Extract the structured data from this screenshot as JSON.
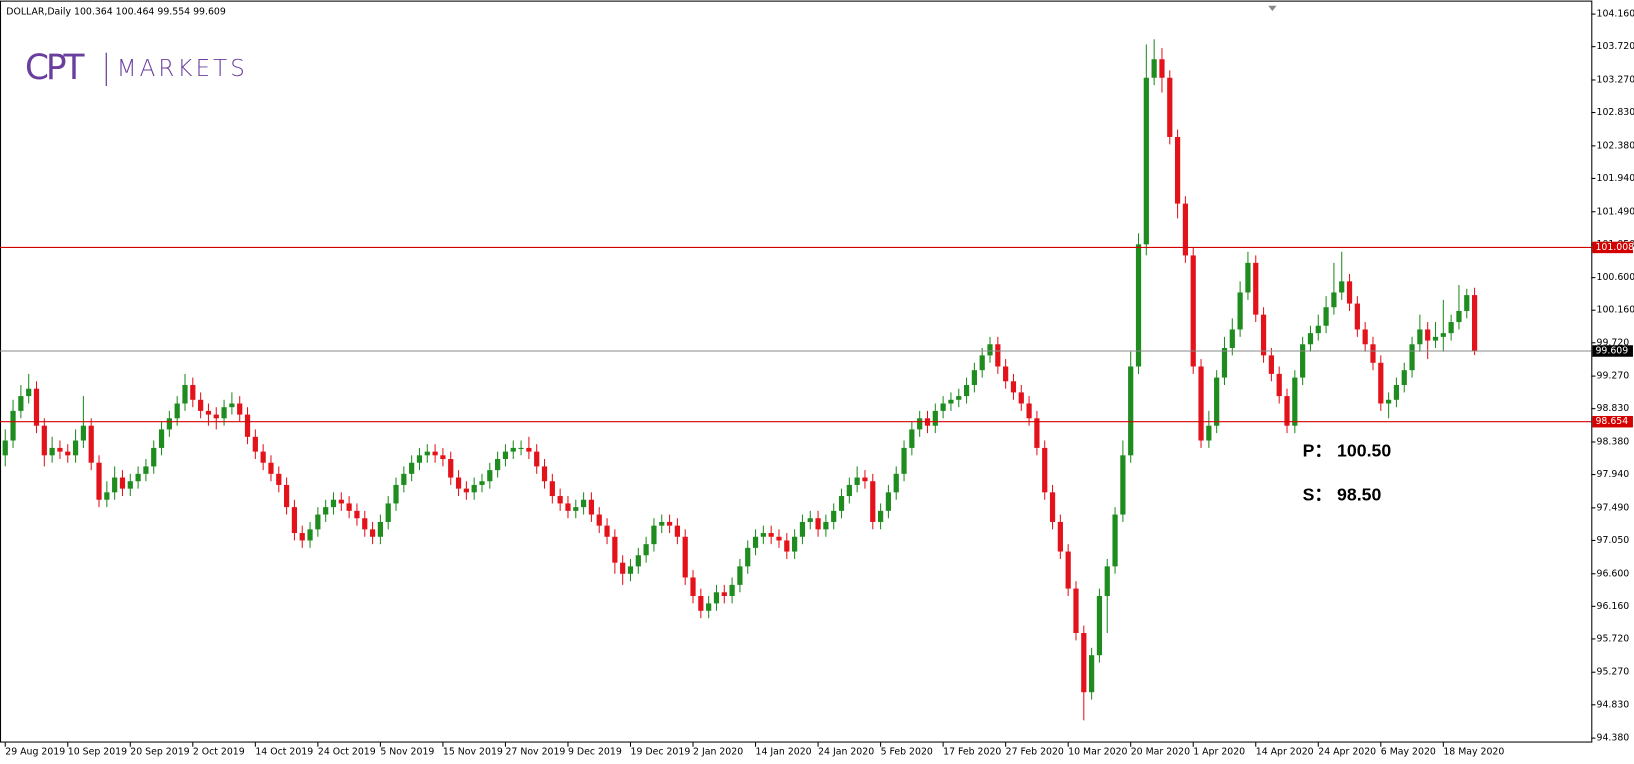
{
  "chart_data": {
    "type": "candlestick",
    "header": "DOLLAR,Daily  100.364 100.464 99.554 99.609",
    "logo": {
      "mark": "CPT",
      "name": "MARKETS"
    },
    "annotations": [
      "P：  100.50",
      "S：  98.50"
    ],
    "up_color": "#1e8c1e",
    "down_color": "#e3121b",
    "ylim": [
      94.32,
      104.3
    ],
    "yticks": [
      {
        "value": 104.16,
        "label": "104.160"
      },
      {
        "value": 103.72,
        "label": "103.720"
      },
      {
        "value": 103.27,
        "label": "103.270"
      },
      {
        "value": 102.83,
        "label": "102.830"
      },
      {
        "value": 102.38,
        "label": "102.380"
      },
      {
        "value": 101.94,
        "label": "101.940"
      },
      {
        "value": 101.49,
        "label": "101.490"
      },
      {
        "value": 101.05,
        "label": "101.050"
      },
      {
        "value": 100.6,
        "label": "100.600"
      },
      {
        "value": 100.16,
        "label": "100.160"
      },
      {
        "value": 99.72,
        "label": "99.720"
      },
      {
        "value": 99.27,
        "label": "99.270"
      },
      {
        "value": 98.83,
        "label": "98.830"
      },
      {
        "value": 98.38,
        "label": "98.380"
      },
      {
        "value": 97.94,
        "label": "97.940"
      },
      {
        "value": 97.49,
        "label": "97.490"
      },
      {
        "value": 97.05,
        "label": "97.050"
      },
      {
        "value": 96.6,
        "label": "96.600"
      },
      {
        "value": 96.16,
        "label": "96.160"
      },
      {
        "value": 95.72,
        "label": "95.720"
      },
      {
        "value": 95.27,
        "label": "95.270"
      },
      {
        "value": 94.83,
        "label": "94.830"
      },
      {
        "value": 94.38,
        "label": "94.380"
      }
    ],
    "xlim": [
      -0.67,
      202.93
    ],
    "xticks": [
      {
        "value": 0,
        "label": "29 Aug 2019"
      },
      {
        "value": 8,
        "label": "10 Sep 2019"
      },
      {
        "value": 16,
        "label": "20 Sep 2019"
      },
      {
        "value": 24,
        "label": "2 Oct 2019"
      },
      {
        "value": 32,
        "label": "14 Oct 2019"
      },
      {
        "value": 40,
        "label": "24 Oct 2019"
      },
      {
        "value": 48,
        "label": "5 Nov 2019"
      },
      {
        "value": 56,
        "label": "15 Nov 2019"
      },
      {
        "value": 64,
        "label": "27 Nov 2019"
      },
      {
        "value": 72,
        "label": "9 Dec 2019"
      },
      {
        "value": 80,
        "label": "19 Dec 2019"
      },
      {
        "value": 88,
        "label": "2 Jan 2020"
      },
      {
        "value": 96,
        "label": "14 Jan 2020"
      },
      {
        "value": 104,
        "label": "24 Jan 2020"
      },
      {
        "value": 112,
        "label": "5 Feb 2020"
      },
      {
        "value": 120,
        "label": "17 Feb 2020"
      },
      {
        "value": 128,
        "label": "27 Feb 2020"
      },
      {
        "value": 136,
        "label": "10 Mar 2020"
      },
      {
        "value": 144,
        "label": "20 Mar 2020"
      },
      {
        "value": 152,
        "label": "1 Apr 2020"
      },
      {
        "value": 160,
        "label": "14 Apr 2020"
      },
      {
        "value": 168,
        "label": "24 Apr 2020"
      },
      {
        "value": 176,
        "label": "6 May 2020"
      },
      {
        "value": 184,
        "label": "18 May 2020"
      }
    ],
    "levels": [
      101.008,
      99.609,
      98.654
    ],
    "level_colors": [
      "#d40000",
      "#888888",
      "#d40000"
    ],
    "level_label_colors": [
      "#d40000",
      "#000000",
      "#d40000"
    ],
    "ohlc": [
      [
        98.2,
        98.55,
        98.05,
        98.4
      ],
      [
        98.4,
        98.95,
        98.3,
        98.8
      ],
      [
        98.8,
        99.15,
        98.7,
        99.0
      ],
      [
        99.0,
        99.3,
        98.9,
        99.1
      ],
      [
        99.1,
        99.2,
        98.5,
        98.6
      ],
      [
        98.6,
        98.7,
        98.05,
        98.2
      ],
      [
        98.2,
        98.45,
        98.1,
        98.3
      ],
      [
        98.3,
        98.4,
        98.15,
        98.25
      ],
      [
        98.25,
        98.35,
        98.1,
        98.2
      ],
      [
        98.2,
        98.55,
        98.1,
        98.4
      ],
      [
        98.4,
        99.0,
        98.3,
        98.6
      ],
      [
        98.6,
        98.7,
        98.0,
        98.1
      ],
      [
        98.1,
        98.2,
        97.5,
        97.6
      ],
      [
        97.6,
        97.85,
        97.5,
        97.7
      ],
      [
        97.7,
        98.05,
        97.6,
        97.9
      ],
      [
        97.9,
        98.0,
        97.65,
        97.75
      ],
      [
        97.75,
        97.95,
        97.65,
        97.85
      ],
      [
        97.85,
        98.05,
        97.75,
        97.95
      ],
      [
        97.95,
        98.15,
        97.85,
        98.05
      ],
      [
        98.05,
        98.4,
        97.95,
        98.3
      ],
      [
        98.3,
        98.65,
        98.2,
        98.55
      ],
      [
        98.55,
        98.8,
        98.45,
        98.7
      ],
      [
        98.7,
        99.0,
        98.6,
        98.9
      ],
      [
        98.9,
        99.3,
        98.8,
        99.15
      ],
      [
        99.15,
        99.25,
        98.85,
        98.95
      ],
      [
        98.95,
        99.05,
        98.7,
        98.8
      ],
      [
        98.8,
        98.9,
        98.6,
        98.75
      ],
      [
        98.75,
        98.85,
        98.55,
        98.7
      ],
      [
        98.7,
        98.95,
        98.6,
        98.85
      ],
      [
        98.85,
        99.05,
        98.75,
        98.9
      ],
      [
        98.9,
        99.0,
        98.65,
        98.75
      ],
      [
        98.75,
        98.85,
        98.35,
        98.45
      ],
      [
        98.45,
        98.55,
        98.15,
        98.25
      ],
      [
        98.25,
        98.35,
        98.0,
        98.1
      ],
      [
        98.1,
        98.2,
        97.85,
        97.95
      ],
      [
        97.95,
        98.05,
        97.7,
        97.8
      ],
      [
        97.8,
        97.9,
        97.4,
        97.5
      ],
      [
        97.5,
        97.6,
        97.05,
        97.15
      ],
      [
        97.15,
        97.25,
        96.95,
        97.05
      ],
      [
        97.05,
        97.3,
        96.95,
        97.2
      ],
      [
        97.2,
        97.5,
        97.1,
        97.4
      ],
      [
        97.4,
        97.6,
        97.3,
        97.5
      ],
      [
        97.5,
        97.7,
        97.4,
        97.6
      ],
      [
        97.6,
        97.7,
        97.45,
        97.55
      ],
      [
        97.55,
        97.65,
        97.35,
        97.45
      ],
      [
        97.45,
        97.55,
        97.25,
        97.35
      ],
      [
        97.35,
        97.45,
        97.1,
        97.2
      ],
      [
        97.2,
        97.3,
        97.0,
        97.1
      ],
      [
        97.1,
        97.4,
        97.0,
        97.3
      ],
      [
        97.3,
        97.65,
        97.2,
        97.55
      ],
      [
        97.55,
        97.9,
        97.45,
        97.8
      ],
      [
        97.8,
        98.05,
        97.7,
        97.95
      ],
      [
        97.95,
        98.2,
        97.85,
        98.1
      ],
      [
        98.1,
        98.3,
        98.0,
        98.2
      ],
      [
        98.2,
        98.35,
        98.1,
        98.25
      ],
      [
        98.25,
        98.35,
        98.1,
        98.2
      ],
      [
        98.2,
        98.3,
        98.05,
        98.15
      ],
      [
        98.15,
        98.25,
        97.8,
        97.9
      ],
      [
        97.9,
        98.0,
        97.65,
        97.75
      ],
      [
        97.75,
        97.85,
        97.6,
        97.7
      ],
      [
        97.7,
        97.9,
        97.6,
        97.8
      ],
      [
        97.8,
        97.95,
        97.7,
        97.85
      ],
      [
        97.85,
        98.1,
        97.75,
        98.0
      ],
      [
        98.0,
        98.25,
        97.9,
        98.15
      ],
      [
        98.15,
        98.35,
        98.05,
        98.25
      ],
      [
        98.25,
        98.4,
        98.15,
        98.3
      ],
      [
        98.3,
        98.4,
        98.2,
        98.3
      ],
      [
        98.3,
        98.45,
        98.15,
        98.25
      ],
      [
        98.25,
        98.35,
        97.95,
        98.05
      ],
      [
        98.05,
        98.15,
        97.75,
        97.85
      ],
      [
        97.85,
        97.95,
        97.55,
        97.65
      ],
      [
        97.65,
        97.75,
        97.45,
        97.55
      ],
      [
        97.55,
        97.65,
        97.35,
        97.45
      ],
      [
        97.45,
        97.6,
        97.35,
        97.5
      ],
      [
        97.5,
        97.7,
        97.4,
        97.6
      ],
      [
        97.6,
        97.7,
        97.3,
        97.4
      ],
      [
        97.4,
        97.5,
        97.15,
        97.25
      ],
      [
        97.25,
        97.35,
        97.0,
        97.1
      ],
      [
        97.1,
        97.2,
        96.6,
        96.75
      ],
      [
        96.75,
        96.85,
        96.45,
        96.6
      ],
      [
        96.6,
        96.8,
        96.5,
        96.7
      ],
      [
        96.7,
        96.95,
        96.6,
        96.85
      ],
      [
        96.85,
        97.1,
        96.75,
        97.0
      ],
      [
        97.0,
        97.35,
        96.9,
        97.25
      ],
      [
        97.25,
        97.4,
        97.15,
        97.3
      ],
      [
        97.3,
        97.4,
        97.15,
        97.25
      ],
      [
        97.25,
        97.35,
        97.0,
        97.1
      ],
      [
        97.1,
        97.2,
        96.45,
        96.55
      ],
      [
        96.55,
        96.65,
        96.2,
        96.3
      ],
      [
        96.3,
        96.4,
        96.0,
        96.1
      ],
      [
        96.1,
        96.3,
        96.0,
        96.2
      ],
      [
        96.2,
        96.45,
        96.1,
        96.35
      ],
      [
        96.35,
        96.45,
        96.2,
        96.3
      ],
      [
        96.3,
        96.55,
        96.2,
        96.45
      ],
      [
        96.45,
        96.8,
        96.35,
        96.7
      ],
      [
        96.7,
        97.05,
        96.6,
        96.95
      ],
      [
        96.95,
        97.2,
        96.85,
        97.1
      ],
      [
        97.1,
        97.25,
        97.0,
        97.15
      ],
      [
        97.15,
        97.25,
        97.0,
        97.1
      ],
      [
        97.1,
        97.2,
        96.95,
        97.05
      ],
      [
        97.05,
        97.15,
        96.8,
        96.9
      ],
      [
        96.9,
        97.2,
        96.8,
        97.1
      ],
      [
        97.1,
        97.4,
        97.0,
        97.3
      ],
      [
        97.3,
        97.45,
        97.2,
        97.35
      ],
      [
        97.35,
        97.45,
        97.1,
        97.2
      ],
      [
        97.2,
        97.4,
        97.1,
        97.3
      ],
      [
        97.3,
        97.55,
        97.2,
        97.45
      ],
      [
        97.45,
        97.75,
        97.35,
        97.65
      ],
      [
        97.65,
        97.9,
        97.55,
        97.8
      ],
      [
        97.8,
        98.05,
        97.7,
        97.9
      ],
      [
        97.9,
        98.0,
        97.75,
        97.85
      ],
      [
        97.85,
        97.95,
        97.2,
        97.3
      ],
      [
        97.3,
        97.55,
        97.2,
        97.45
      ],
      [
        97.45,
        97.8,
        97.35,
        97.7
      ],
      [
        97.7,
        98.05,
        97.6,
        97.95
      ],
      [
        97.95,
        98.4,
        97.85,
        98.3
      ],
      [
        98.3,
        98.65,
        98.2,
        98.55
      ],
      [
        98.55,
        98.8,
        98.45,
        98.7
      ],
      [
        98.7,
        98.8,
        98.5,
        98.6
      ],
      [
        98.6,
        98.9,
        98.5,
        98.8
      ],
      [
        98.8,
        99.0,
        98.7,
        98.9
      ],
      [
        98.9,
        99.05,
        98.8,
        98.95
      ],
      [
        98.95,
        99.1,
        98.85,
        99.0
      ],
      [
        99.0,
        99.25,
        98.9,
        99.15
      ],
      [
        99.15,
        99.45,
        99.05,
        99.35
      ],
      [
        99.35,
        99.65,
        99.25,
        99.55
      ],
      [
        99.55,
        99.8,
        99.45,
        99.7
      ],
      [
        99.7,
        99.8,
        99.3,
        99.4
      ],
      [
        99.4,
        99.5,
        99.1,
        99.2
      ],
      [
        99.2,
        99.3,
        98.95,
        99.05
      ],
      [
        99.05,
        99.15,
        98.8,
        98.9
      ],
      [
        98.9,
        99.0,
        98.6,
        98.7
      ],
      [
        98.7,
        98.8,
        98.2,
        98.3
      ],
      [
        98.3,
        98.4,
        97.6,
        97.7
      ],
      [
        97.7,
        97.8,
        97.2,
        97.3
      ],
      [
        97.3,
        97.4,
        96.8,
        96.9
      ],
      [
        96.9,
        97.0,
        96.3,
        96.4
      ],
      [
        96.4,
        96.5,
        95.7,
        95.8
      ],
      [
        95.8,
        95.9,
        94.62,
        95.0
      ],
      [
        95.0,
        95.6,
        94.9,
        95.5
      ],
      [
        95.5,
        96.4,
        95.4,
        96.3
      ],
      [
        96.3,
        96.8,
        95.8,
        96.7
      ],
      [
        96.7,
        97.5,
        96.6,
        97.4
      ],
      [
        97.4,
        98.4,
        97.3,
        98.2
      ],
      [
        98.2,
        99.6,
        98.1,
        99.4
      ],
      [
        99.4,
        101.2,
        99.3,
        101.05
      ],
      [
        101.05,
        103.75,
        100.9,
        103.3
      ],
      [
        103.3,
        103.82,
        103.2,
        103.55
      ],
      [
        103.55,
        103.7,
        103.1,
        103.3
      ],
      [
        103.3,
        103.4,
        102.4,
        102.5
      ],
      [
        102.5,
        102.6,
        101.4,
        101.6
      ],
      [
        101.6,
        101.7,
        100.8,
        100.9
      ],
      [
        100.9,
        101.0,
        99.3,
        99.4
      ],
      [
        99.4,
        99.5,
        98.3,
        98.4
      ],
      [
        98.4,
        98.8,
        98.3,
        98.6
      ],
      [
        98.6,
        99.35,
        98.5,
        99.25
      ],
      [
        99.25,
        99.8,
        99.15,
        99.65
      ],
      [
        99.65,
        100.05,
        99.55,
        99.9
      ],
      [
        99.9,
        100.55,
        99.8,
        100.4
      ],
      [
        100.4,
        100.95,
        100.3,
        100.8
      ],
      [
        100.8,
        100.9,
        100.0,
        100.1
      ],
      [
        100.1,
        100.2,
        99.45,
        99.55
      ],
      [
        99.55,
        99.65,
        99.2,
        99.3
      ],
      [
        99.3,
        99.4,
        98.9,
        99.0
      ],
      [
        99.0,
        99.1,
        98.5,
        98.6
      ],
      [
        98.6,
        99.35,
        98.5,
        99.25
      ],
      [
        99.25,
        99.8,
        99.15,
        99.7
      ],
      [
        99.7,
        99.95,
        99.6,
        99.85
      ],
      [
        99.85,
        100.1,
        99.75,
        99.95
      ],
      [
        99.95,
        100.35,
        99.85,
        100.2
      ],
      [
        100.2,
        100.8,
        100.1,
        100.4
      ],
      [
        100.4,
        100.95,
        100.3,
        100.55
      ],
      [
        100.55,
        100.65,
        100.15,
        100.25
      ],
      [
        100.25,
        100.35,
        99.8,
        99.9
      ],
      [
        99.9,
        100.0,
        99.6,
        99.7
      ],
      [
        99.7,
        99.8,
        99.35,
        99.45
      ],
      [
        99.45,
        99.55,
        98.8,
        98.9
      ],
      [
        98.9,
        99.05,
        98.7,
        98.95
      ],
      [
        98.95,
        99.25,
        98.85,
        99.15
      ],
      [
        99.15,
        99.45,
        99.05,
        99.35
      ],
      [
        99.35,
        99.8,
        99.25,
        99.7
      ],
      [
        99.7,
        100.1,
        99.6,
        99.9
      ],
      [
        99.9,
        100.0,
        99.5,
        99.75
      ],
      [
        99.75,
        100.0,
        99.65,
        99.8
      ],
      [
        99.8,
        100.3,
        99.6,
        99.85
      ],
      [
        99.85,
        100.1,
        99.75,
        100.0
      ],
      [
        100.0,
        100.5,
        99.9,
        100.15
      ],
      [
        100.15,
        100.45,
        100.05,
        100.364
      ],
      [
        100.364,
        100.464,
        99.554,
        99.609
      ]
    ]
  }
}
